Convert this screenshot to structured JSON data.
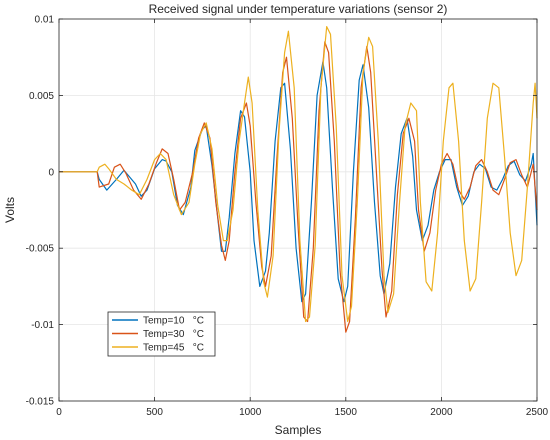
{
  "chart_data": {
    "type": "line",
    "title": "Received signal under temperature variations (sensor 2)",
    "xlabel": "Samples",
    "ylabel": "Volts",
    "xlim": [
      0,
      2500
    ],
    "ylim": [
      -0.015,
      0.01
    ],
    "xticks": [
      0,
      500,
      1000,
      1500,
      2000,
      2500
    ],
    "xtick_labels": [
      "0",
      "500",
      "1000",
      "1500",
      "2000",
      "2500"
    ],
    "yticks": [
      -0.015,
      -0.01,
      -0.005,
      0,
      0.005,
      0.01
    ],
    "ytick_labels": [
      "-0.015",
      "-0.01",
      "-0.005",
      "0",
      "0.005",
      "0.01"
    ],
    "grid": true,
    "legend_position": "lower-left",
    "series": [
      {
        "name": "Temp=10   °C",
        "color": "#0072BD",
        "points": [
          [
            0,
            0
          ],
          [
            200,
            0
          ],
          [
            210,
            -0.0005
          ],
          [
            250,
            -0.0012
          ],
          [
            300,
            -0.0005
          ],
          [
            340,
            0.0001
          ],
          [
            360,
            -0.0002
          ],
          [
            400,
            -0.0008
          ],
          [
            430,
            -0.0016
          ],
          [
            460,
            -0.0012
          ],
          [
            500,
            0.0002
          ],
          [
            540,
            0.0008
          ],
          [
            560,
            0.0007
          ],
          [
            590,
            0
          ],
          [
            620,
            -0.0022
          ],
          [
            650,
            -0.0028
          ],
          [
            690,
            -0.001
          ],
          [
            710,
            0.0014
          ],
          [
            750,
            0.0028
          ],
          [
            770,
            0.003
          ],
          [
            800,
            0.0004
          ],
          [
            830,
            -0.003
          ],
          [
            850,
            -0.0052
          ],
          [
            870,
            -0.0052
          ],
          [
            890,
            -0.003
          ],
          [
            920,
            0.0012
          ],
          [
            950,
            0.004
          ],
          [
            970,
            0.0036
          ],
          [
            1000,
            0
          ],
          [
            1020,
            -0.0045
          ],
          [
            1050,
            -0.0075
          ],
          [
            1080,
            -0.0065
          ],
          [
            1100,
            -0.004
          ],
          [
            1130,
            0.002
          ],
          [
            1160,
            0.0055
          ],
          [
            1180,
            0.0058
          ],
          [
            1210,
            0.0015
          ],
          [
            1240,
            -0.005
          ],
          [
            1270,
            -0.0085
          ],
          [
            1290,
            -0.008
          ],
          [
            1320,
            -0.002
          ],
          [
            1350,
            0.005
          ],
          [
            1380,
            0.0072
          ],
          [
            1400,
            0.0055
          ],
          [
            1430,
            -0.001
          ],
          [
            1460,
            -0.007
          ],
          [
            1490,
            -0.0085
          ],
          [
            1510,
            -0.0075
          ],
          [
            1540,
            0
          ],
          [
            1570,
            0.006
          ],
          [
            1590,
            0.007
          ],
          [
            1620,
            0.0042
          ],
          [
            1650,
            -0.002
          ],
          [
            1680,
            -0.0068
          ],
          [
            1700,
            -0.008
          ],
          [
            1730,
            -0.006
          ],
          [
            1760,
            -0.001
          ],
          [
            1790,
            0.0025
          ],
          [
            1820,
            0.0035
          ],
          [
            1850,
            0.001
          ],
          [
            1870,
            -0.0025
          ],
          [
            1900,
            -0.0045
          ],
          [
            1930,
            -0.0035
          ],
          [
            1960,
            -0.0012
          ],
          [
            1990,
            0
          ],
          [
            2020,
            0.0008
          ],
          [
            2050,
            0.0008
          ],
          [
            2080,
            -0.001
          ],
          [
            2110,
            -0.0022
          ],
          [
            2140,
            -0.0016
          ],
          [
            2170,
            0
          ],
          [
            2200,
            0.0005
          ],
          [
            2230,
            0.0002
          ],
          [
            2260,
            -0.001
          ],
          [
            2290,
            -0.0012
          ],
          [
            2320,
            -0.0005
          ],
          [
            2350,
            0.0004
          ],
          [
            2380,
            0.0007
          ],
          [
            2410,
            -0.0002
          ],
          [
            2440,
            -0.0006
          ],
          [
            2470,
            0.0005
          ],
          [
            2480,
            0.0012
          ],
          [
            2500,
            -0.0035
          ]
        ]
      },
      {
        "name": "Temp=30   °C",
        "color": "#D95319",
        "points": [
          [
            0,
            0
          ],
          [
            200,
            0
          ],
          [
            210,
            -0.001
          ],
          [
            260,
            -0.0008
          ],
          [
            290,
            0.0003
          ],
          [
            320,
            0.0005
          ],
          [
            350,
            -0.0001
          ],
          [
            390,
            -0.0012
          ],
          [
            430,
            -0.0018
          ],
          [
            470,
            -0.0008
          ],
          [
            510,
            0.0006
          ],
          [
            540,
            0.0015
          ],
          [
            570,
            0.0012
          ],
          [
            600,
            -0.0005
          ],
          [
            630,
            -0.0025
          ],
          [
            660,
            -0.002
          ],
          [
            700,
            0
          ],
          [
            730,
            0.0022
          ],
          [
            760,
            0.0032
          ],
          [
            790,
            0.0022
          ],
          [
            820,
            -0.002
          ],
          [
            850,
            -0.0048
          ],
          [
            870,
            -0.0058
          ],
          [
            890,
            -0.0045
          ],
          [
            920,
            0
          ],
          [
            950,
            0.0035
          ],
          [
            980,
            0.0045
          ],
          [
            1000,
            0.003
          ],
          [
            1030,
            -0.002
          ],
          [
            1060,
            -0.0062
          ],
          [
            1080,
            -0.0075
          ],
          [
            1110,
            -0.0055
          ],
          [
            1140,
            0.001
          ],
          [
            1170,
            0.0065
          ],
          [
            1190,
            0.0075
          ],
          [
            1220,
            0.0035
          ],
          [
            1250,
            -0.0035
          ],
          [
            1280,
            -0.0095
          ],
          [
            1300,
            -0.0098
          ],
          [
            1330,
            -0.005
          ],
          [
            1360,
            0.004
          ],
          [
            1390,
            0.0085
          ],
          [
            1410,
            0.0078
          ],
          [
            1440,
            0.002
          ],
          [
            1470,
            -0.0065
          ],
          [
            1500,
            -0.0105
          ],
          [
            1520,
            -0.0098
          ],
          [
            1550,
            -0.003
          ],
          [
            1580,
            0.0055
          ],
          [
            1610,
            0.0082
          ],
          [
            1630,
            0.0065
          ],
          [
            1660,
            0
          ],
          [
            1690,
            -0.0065
          ],
          [
            1710,
            -0.0095
          ],
          [
            1740,
            -0.0078
          ],
          [
            1770,
            -0.0015
          ],
          [
            1800,
            0.0025
          ],
          [
            1830,
            0.0035
          ],
          [
            1860,
            0.002
          ],
          [
            1880,
            -0.0025
          ],
          [
            1910,
            -0.0052
          ],
          [
            1940,
            -0.004
          ],
          [
            1970,
            -0.0012
          ],
          [
            2000,
            0.0005
          ],
          [
            2030,
            0.0012
          ],
          [
            2060,
            0.0005
          ],
          [
            2090,
            -0.0012
          ],
          [
            2120,
            -0.0018
          ],
          [
            2150,
            -0.001
          ],
          [
            2180,
            0.0004
          ],
          [
            2210,
            0.0008
          ],
          [
            2240,
            0
          ],
          [
            2270,
            -0.0012
          ],
          [
            2300,
            -0.0015
          ],
          [
            2330,
            -0.0005
          ],
          [
            2360,
            0.0006
          ],
          [
            2390,
            0.0008
          ],
          [
            2420,
            -0.0002
          ],
          [
            2450,
            -0.001
          ],
          [
            2480,
            0.0005
          ],
          [
            2500,
            -0.0025
          ]
        ]
      },
      {
        "name": "Temp=45   °C",
        "color": "#EDB120",
        "points": [
          [
            0,
            0
          ],
          [
            200,
            0
          ],
          [
            210,
            0.0003
          ],
          [
            240,
            0.0005
          ],
          [
            260,
            0.0002
          ],
          [
            300,
            -0.0005
          ],
          [
            340,
            -0.0008
          ],
          [
            380,
            -0.0012
          ],
          [
            420,
            -0.0015
          ],
          [
            460,
            -0.0005
          ],
          [
            500,
            0.0008
          ],
          [
            530,
            0.0012
          ],
          [
            560,
            0.0008
          ],
          [
            600,
            -0.0015
          ],
          [
            640,
            -0.0028
          ],
          [
            680,
            -0.002
          ],
          [
            710,
            0.0005
          ],
          [
            740,
            0.0025
          ],
          [
            770,
            0.0032
          ],
          [
            800,
            0.0015
          ],
          [
            830,
            -0.0022
          ],
          [
            860,
            -0.0045
          ],
          [
            880,
            -0.0045
          ],
          [
            910,
            -0.0025
          ],
          [
            940,
            0.0018
          ],
          [
            970,
            0.0045
          ],
          [
            990,
            0.0062
          ],
          [
            1010,
            0.0045
          ],
          [
            1040,
            -0.0025
          ],
          [
            1070,
            -0.0072
          ],
          [
            1090,
            -0.0082
          ],
          [
            1120,
            -0.0055
          ],
          [
            1150,
            0.0025
          ],
          [
            1180,
            0.0078
          ],
          [
            1200,
            0.0092
          ],
          [
            1230,
            0.0055
          ],
          [
            1260,
            -0.0045
          ],
          [
            1290,
            -0.0098
          ],
          [
            1310,
            -0.0095
          ],
          [
            1340,
            -0.0048
          ],
          [
            1370,
            0.0055
          ],
          [
            1400,
            0.0095
          ],
          [
            1420,
            0.009
          ],
          [
            1450,
            0.003
          ],
          [
            1480,
            -0.0068
          ],
          [
            1510,
            -0.0098
          ],
          [
            1530,
            -0.0088
          ],
          [
            1560,
            -0.002
          ],
          [
            1590,
            0.0065
          ],
          [
            1620,
            0.0088
          ],
          [
            1640,
            0.0082
          ],
          [
            1670,
            0.002
          ],
          [
            1700,
            -0.0068
          ],
          [
            1720,
            -0.0092
          ],
          [
            1750,
            -0.008
          ],
          [
            1780,
            -0.0022
          ],
          [
            1810,
            0.003
          ],
          [
            1840,
            0.0045
          ],
          [
            1870,
            0.004
          ],
          [
            1890,
            -0.002
          ],
          [
            1920,
            -0.0072
          ],
          [
            1950,
            -0.0078
          ],
          [
            1980,
            -0.004
          ],
          [
            2010,
            0.002
          ],
          [
            2040,
            0.0055
          ],
          [
            2060,
            0.0058
          ],
          [
            2090,
            0.002
          ],
          [
            2120,
            -0.0045
          ],
          [
            2150,
            -0.0078
          ],
          [
            2180,
            -0.007
          ],
          [
            2210,
            -0.002
          ],
          [
            2240,
            0.0035
          ],
          [
            2270,
            0.0058
          ],
          [
            2300,
            0.0055
          ],
          [
            2330,
            0.001
          ],
          [
            2360,
            -0.004
          ],
          [
            2390,
            -0.0068
          ],
          [
            2420,
            -0.0058
          ],
          [
            2450,
            -0.001
          ],
          [
            2480,
            0.0045
          ],
          [
            2490,
            0.0058
          ],
          [
            2500,
            0.0035
          ]
        ]
      }
    ]
  }
}
